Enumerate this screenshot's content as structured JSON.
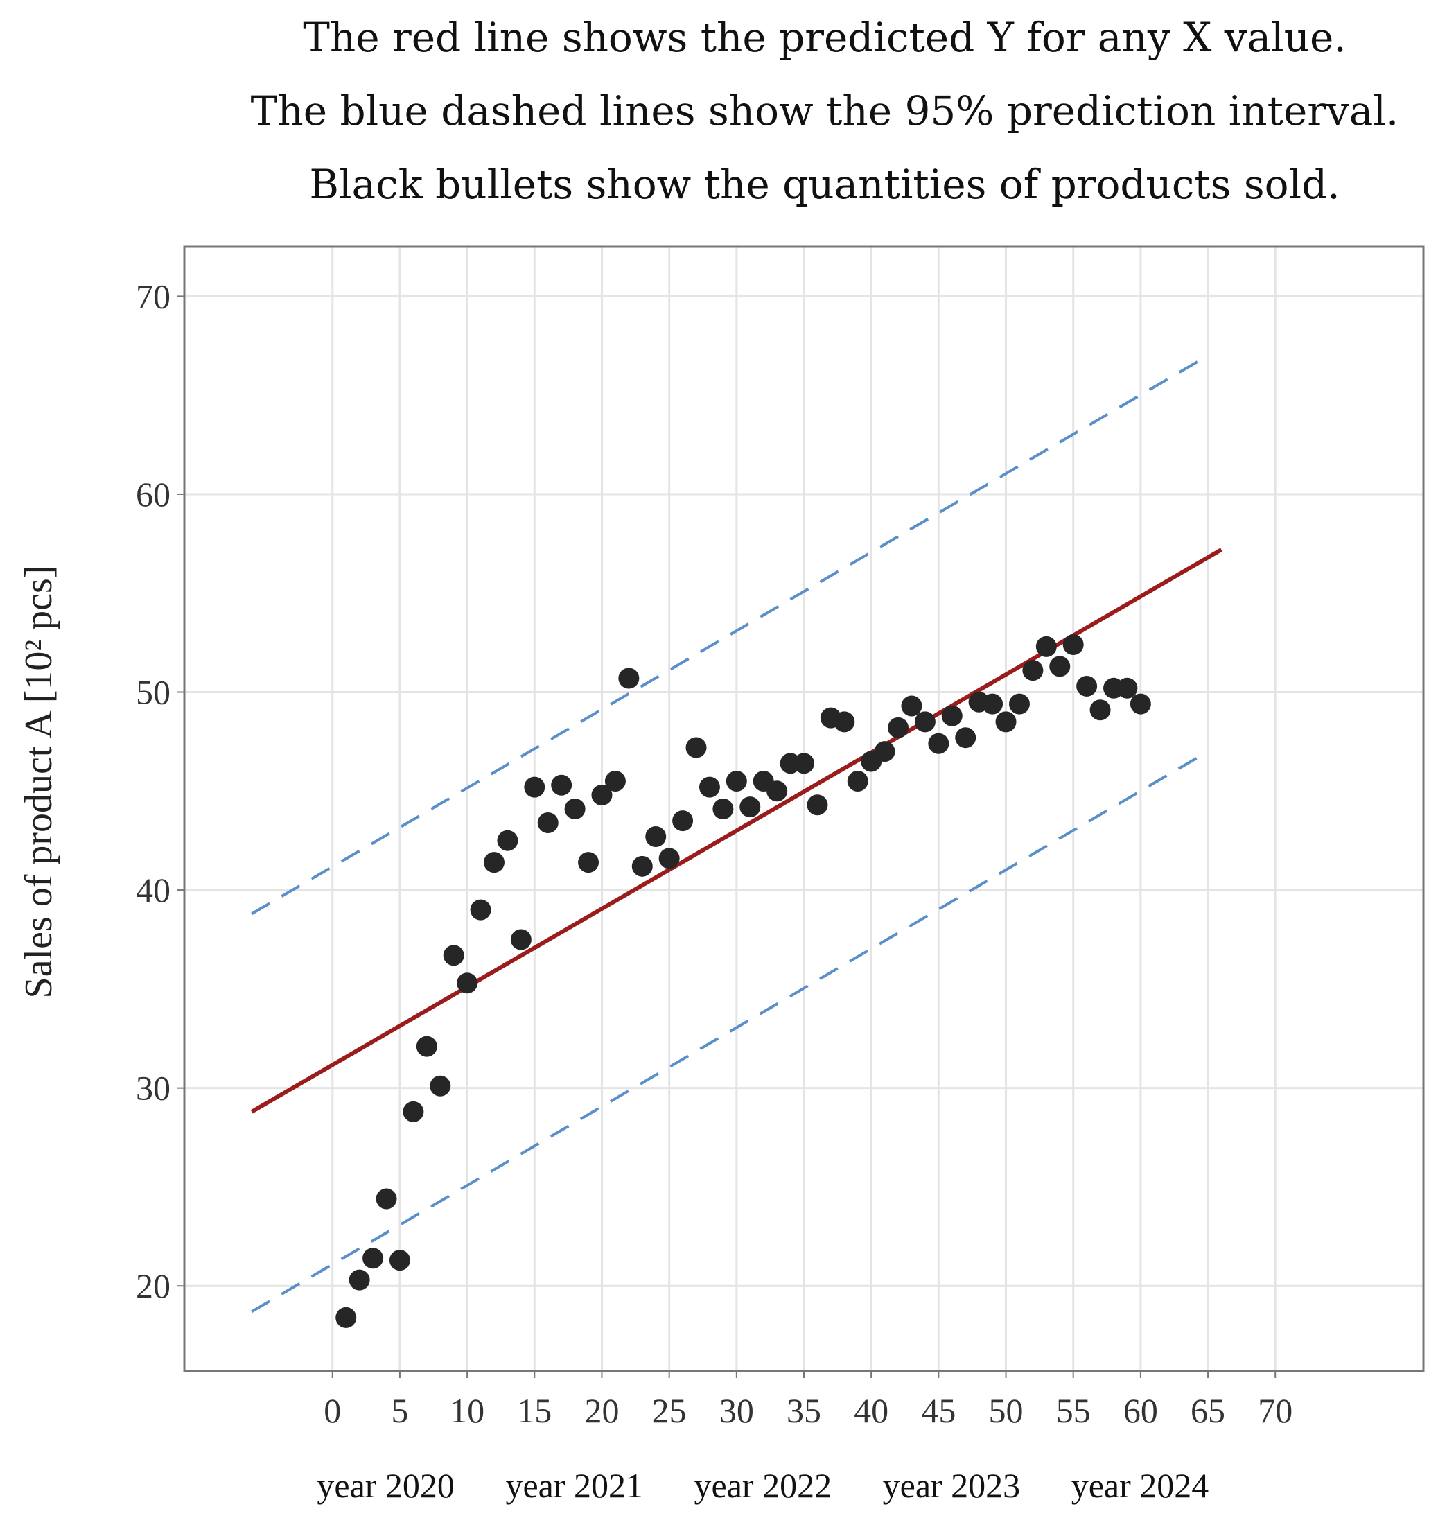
{
  "chart_data": {
    "type": "scatter",
    "title_lines": [
      "The red line shows the predicted Y for any  X value.",
      "The blue dashed lines show the 95% prediction interval.",
      "Black bullets show the quantities of products sold."
    ],
    "ylabel": "Sales of product A [10² pcs]",
    "xlabel": "",
    "xlim": [
      -11,
      81
    ],
    "ylim": [
      15.7,
      72.5
    ],
    "x_ticks": [
      0,
      5,
      10,
      15,
      20,
      25,
      30,
      35,
      40,
      45,
      50,
      55,
      60,
      65,
      70
    ],
    "y_ticks": [
      20,
      30,
      40,
      50,
      60,
      70
    ],
    "grid": true,
    "year_labels": [
      {
        "text": "year 2020",
        "x": 2
      },
      {
        "text": "year 2021",
        "x": 16
      },
      {
        "text": "year 2022",
        "x": 30
      },
      {
        "text": "year 2023",
        "x": 44
      },
      {
        "text": "year 2024",
        "x": 58
      }
    ],
    "colors": {
      "points": "#262626",
      "regression": "#9b1c1c",
      "interval": "#5b8fc9",
      "grid": "#e4e4e4",
      "frame": "#777777"
    },
    "series": [
      {
        "name": "Quantities sold",
        "kind": "scatter",
        "points": [
          [
            1,
            18.4
          ],
          [
            2,
            20.3
          ],
          [
            3,
            21.4
          ],
          [
            4,
            24.4
          ],
          [
            5,
            21.3
          ],
          [
            6,
            28.8
          ],
          [
            7,
            32.1
          ],
          [
            8,
            30.1
          ],
          [
            9,
            36.7
          ],
          [
            10,
            35.3
          ],
          [
            11,
            39.0
          ],
          [
            12,
            41.4
          ],
          [
            13,
            42.5
          ],
          [
            14,
            37.5
          ],
          [
            15,
            45.2
          ],
          [
            16,
            43.4
          ],
          [
            17,
            45.3
          ],
          [
            18,
            44.1
          ],
          [
            19,
            41.4
          ],
          [
            20,
            44.8
          ],
          [
            21,
            45.5
          ],
          [
            22,
            50.7
          ],
          [
            23,
            41.2
          ],
          [
            24,
            42.7
          ],
          [
            25,
            41.6
          ],
          [
            26,
            43.5
          ],
          [
            27,
            47.2
          ],
          [
            28,
            45.2
          ],
          [
            29,
            44.1
          ],
          [
            30,
            45.5
          ],
          [
            31,
            44.2
          ],
          [
            32,
            45.5
          ],
          [
            33,
            45.0
          ],
          [
            34,
            46.4
          ],
          [
            35,
            46.4
          ],
          [
            36,
            44.3
          ],
          [
            37,
            48.7
          ],
          [
            38,
            48.5
          ],
          [
            39,
            45.5
          ],
          [
            40,
            46.5
          ],
          [
            41,
            47.0
          ],
          [
            42,
            48.2
          ],
          [
            43,
            49.3
          ],
          [
            44,
            48.5
          ],
          [
            45,
            47.4
          ],
          [
            46,
            48.8
          ],
          [
            47,
            47.7
          ],
          [
            48,
            49.5
          ],
          [
            49,
            49.4
          ],
          [
            50,
            48.5
          ],
          [
            51,
            49.4
          ],
          [
            52,
            51.1
          ],
          [
            53,
            52.3
          ],
          [
            54,
            51.3
          ],
          [
            55,
            52.4
          ],
          [
            56,
            50.3
          ],
          [
            57,
            49.1
          ],
          [
            58,
            50.2
          ],
          [
            59,
            50.2
          ],
          [
            60,
            49.4
          ]
        ]
      },
      {
        "name": "Predicted Y",
        "kind": "line",
        "style": "solid",
        "points": [
          [
            -6,
            28.8
          ],
          [
            66,
            57.2
          ]
        ]
      },
      {
        "name": "95% prediction interval upper",
        "kind": "line",
        "style": "dashed",
        "points": [
          [
            -6,
            38.8
          ],
          [
            65,
            67.0
          ]
        ]
      },
      {
        "name": "95% prediction interval lower",
        "kind": "line",
        "style": "dashed",
        "points": [
          [
            -6,
            18.7
          ],
          [
            65,
            47.0
          ]
        ]
      }
    ]
  }
}
